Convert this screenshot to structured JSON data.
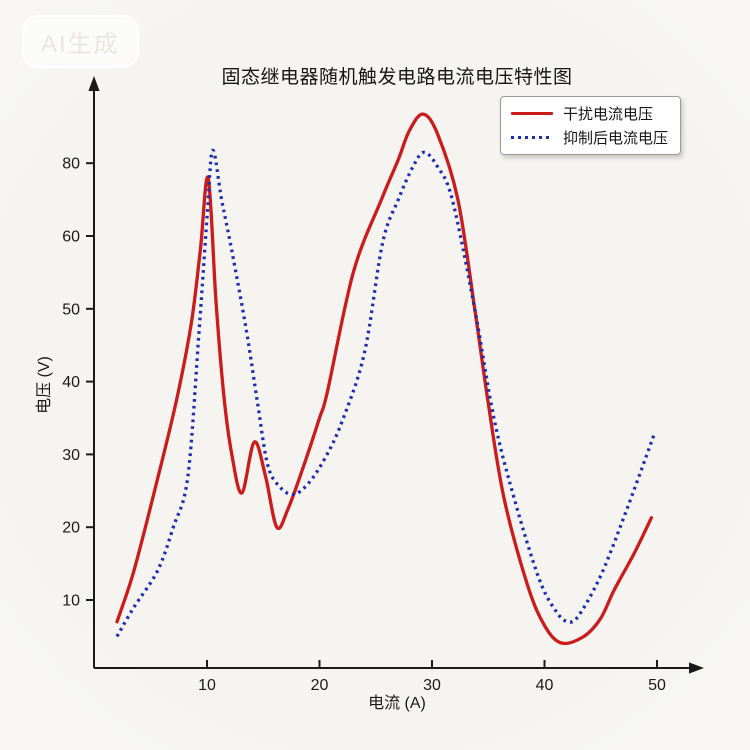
{
  "watermark": "AI生成",
  "title": "固态继电器随机触发电路电流电压特性图",
  "legend": {
    "items": [
      {
        "label": "干扰电流电压",
        "color": "#cc1b1b",
        "style": "solid"
      },
      {
        "label": "抑制后电流电压",
        "color": "#1c2db4",
        "style": "dotted"
      }
    ]
  },
  "chart_data": {
    "type": "line",
    "title": "固态继电器随机触发电路电流电压特性图",
    "xlabel": "电流 (A)",
    "ylabel": "电压 (V)",
    "x_ticks": [
      10,
      20,
      30,
      40,
      50
    ],
    "y_tick_labels": [
      10,
      20,
      30,
      40,
      50,
      60,
      80
    ],
    "axis_note": "y-axis tick labels are evenly spaced as printed; the 60→80 gap spans a single division (artifact of source image)",
    "xlim": [
      0,
      53
    ],
    "grid": false,
    "legend_position": "upper right",
    "axis_color": "#1a1a1a",
    "series": [
      {
        "name": "干扰电流电压",
        "color": "#cc1b1b",
        "style": "solid",
        "points": [
          [
            2,
            7
          ],
          [
            3.5,
            14
          ],
          [
            5.5,
            26
          ],
          [
            7.3,
            37.5
          ],
          [
            8.6,
            48
          ],
          [
            9.4,
            58
          ],
          [
            10.1,
            76
          ],
          [
            10.8,
            51
          ],
          [
            11.5,
            38
          ],
          [
            12.2,
            30
          ],
          [
            13.1,
            24.7
          ],
          [
            14.2,
            31.7
          ],
          [
            15.2,
            27
          ],
          [
            16.2,
            20
          ],
          [
            17.2,
            22.5
          ],
          [
            18.5,
            28
          ],
          [
            20,
            35
          ],
          [
            20.7,
            38.6
          ],
          [
            23,
            55
          ],
          [
            25.5,
            70
          ],
          [
            27,
            81
          ],
          [
            28,
            89
          ],
          [
            29.2,
            93.5
          ],
          [
            30.5,
            88
          ],
          [
            32.3,
            70
          ],
          [
            33.8,
            50
          ],
          [
            35,
            37
          ],
          [
            36.4,
            24
          ],
          [
            38.5,
            12
          ],
          [
            40,
            6.5
          ],
          [
            41.5,
            4.1
          ],
          [
            43.5,
            5
          ],
          [
            45,
            7.5
          ],
          [
            46.2,
            11.4
          ],
          [
            48,
            16.5
          ],
          [
            49.5,
            21.3
          ]
        ]
      },
      {
        "name": "抑制后电流电压",
        "color": "#1c2db4",
        "style": "dotted",
        "points": [
          [
            2,
            5
          ],
          [
            3.5,
            9
          ],
          [
            5.6,
            14
          ],
          [
            7,
            20
          ],
          [
            8.3,
            27
          ],
          [
            9.3,
            47
          ],
          [
            10,
            65
          ],
          [
            10.5,
            83.5
          ],
          [
            11.3,
            70
          ],
          [
            12.2,
            58
          ],
          [
            13.5,
            47
          ],
          [
            14.5,
            37
          ],
          [
            15.4,
            28.5
          ],
          [
            16.5,
            25.5
          ],
          [
            17.7,
            24.5
          ],
          [
            19,
            26
          ],
          [
            20.5,
            29.5
          ],
          [
            22,
            34.5
          ],
          [
            24,
            44
          ],
          [
            25.6,
            59
          ],
          [
            27,
            70
          ],
          [
            28.3,
            79
          ],
          [
            29.3,
            83
          ],
          [
            30.5,
            79
          ],
          [
            31.8,
            70
          ],
          [
            33.8,
            50
          ],
          [
            35.5,
            35
          ],
          [
            37.3,
            24
          ],
          [
            39.5,
            13
          ],
          [
            41,
            8.5
          ],
          [
            42.1,
            7
          ],
          [
            43.1,
            8
          ],
          [
            45.1,
            13.7
          ],
          [
            47.4,
            22.8
          ],
          [
            49.8,
            33
          ]
        ]
      }
    ]
  }
}
